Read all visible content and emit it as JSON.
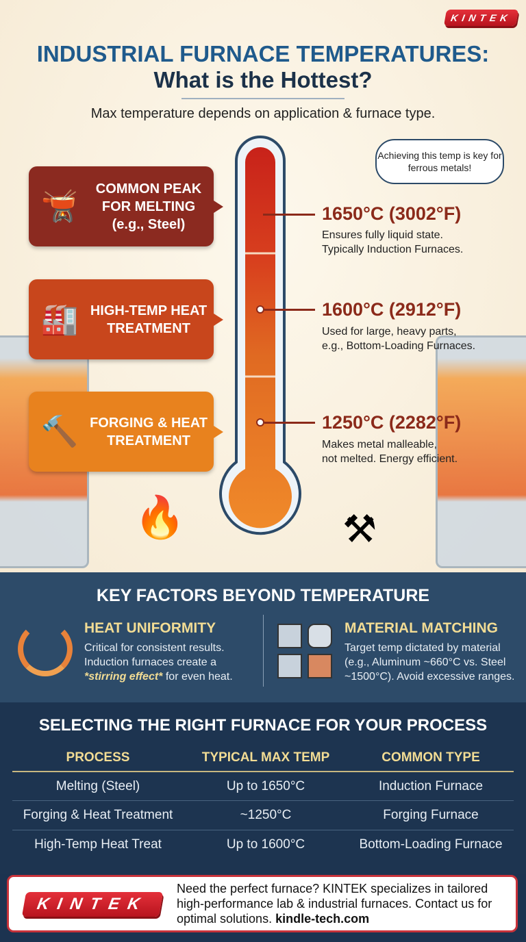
{
  "brand": {
    "logo": "KINTEK"
  },
  "header": {
    "title_line1": "INDUSTRIAL FURNACE TEMPERATURES:",
    "title_line2": "What is the Hottest?",
    "subtitle": "Max temperature depends on application & furnace type."
  },
  "thought_bubble": "Achieving this temp is key for ferrous metals!",
  "tiers": [
    {
      "label": "COMMON PEAK FOR MELTING (e.g., Steel)",
      "icon": "ladle-pour-icon",
      "color": "#8b2a20",
      "temp": "1650°C (3002°F)",
      "desc1": "Ensures fully liquid state.",
      "desc2": "Typically Induction Furnaces."
    },
    {
      "label": "HIGH-TEMP HEAT TREATMENT",
      "icon": "furnace-chamber-icon",
      "color": "#c8461c",
      "temp": "1600°C (2912°F)",
      "desc1": "Used for large, heavy parts,",
      "desc2": "e.g., Bottom-Loading Furnaces."
    },
    {
      "label": "FORGING & HEAT TREATMENT",
      "icon": "hammer-icon",
      "color": "#e8821e",
      "temp": "1250°C (2282°F)",
      "desc1": "Makes metal malleable,",
      "desc2": "not melted. Energy efficient."
    }
  ],
  "key_factors": {
    "title": "KEY FACTORS BEYOND TEMPERATURE",
    "uniformity": {
      "heading": "HEAT UNIFORMITY",
      "line1": "Critical for consistent results.",
      "line2": "Induction furnaces create a",
      "emph": "*stirring effect*",
      "line3": " for even heat."
    },
    "matching": {
      "heading": "MATERIAL MATCHING",
      "line1": "Target temp dictated by material",
      "line2": "(e.g., Aluminum ~660°C vs. Steel",
      "line3": "~1500°C). Avoid excessive ranges."
    }
  },
  "table": {
    "title": "SELECTING THE RIGHT FURNACE FOR YOUR PROCESS",
    "headers": [
      "PROCESS",
      "TYPICAL MAX TEMP",
      "COMMON TYPE"
    ],
    "rows": [
      [
        "Melting (Steel)",
        "Up to 1650°C",
        "Induction Furnace"
      ],
      [
        "Forging & Heat Treatment",
        "~1250°C",
        "Forging Furnace"
      ],
      [
        "High-Temp Heat Treat",
        "Up to 1600°C",
        "Bottom-Loading Furnace"
      ]
    ]
  },
  "footer": {
    "text": "Need the perfect furnace? KINTEK specializes in tailored high-performance lab & industrial furnaces. Contact us for optimal solutions. ",
    "link": "kindle-tech.com"
  }
}
